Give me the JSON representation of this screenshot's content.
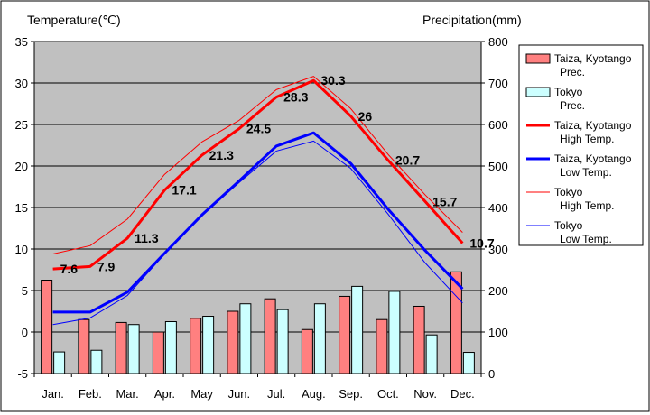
{
  "chart_data": {
    "type": "bar+line",
    "left_axis_title": "Temperature(℃)",
    "right_axis_title": "Precipitation(mm)",
    "categories": [
      "Jan.",
      "Feb.",
      "Mar.",
      "Apr.",
      "May",
      "Jun.",
      "Jul.",
      "Aug.",
      "Sep.",
      "Oct.",
      "Nov.",
      "Dec."
    ],
    "temp_ylim": [
      -5,
      35
    ],
    "temp_ticks": [
      "35",
      "30",
      "25",
      "20",
      "15",
      "10",
      "5",
      "0",
      "-5"
    ],
    "precip_ylim": [
      0,
      800
    ],
    "precip_ticks": [
      "800",
      "700",
      "600",
      "500",
      "400",
      "300",
      "200",
      "100",
      "0"
    ],
    "plot_background": "#c0c0c0",
    "bar_series": [
      {
        "name": "Taiza, Kyotango Prec.",
        "legend_lines": [
          "Taiza, Kyotango",
          "Prec."
        ],
        "color": "#ff8080",
        "values": [
          225,
          130,
          123,
          100,
          133,
          150,
          180,
          106,
          186,
          130,
          162,
          245
        ]
      },
      {
        "name": "Tokyo Prec.",
        "legend_lines": [
          "Tokyo",
          "Prec."
        ],
        "color": "#ccffff",
        "values": [
          52,
          56,
          118,
          125,
          138,
          168,
          154,
          168,
          210,
          198,
          93,
          51
        ]
      }
    ],
    "line_series": [
      {
        "name": "Taiza, Kyotango High Temp.",
        "legend_lines": [
          "Taiza, Kyotango",
          "High Temp."
        ],
        "color": "#ff0000",
        "width": 3,
        "values": [
          7.6,
          7.9,
          11.3,
          17.1,
          21.3,
          24.5,
          28.3,
          30.3,
          26,
          20.7,
          15.7,
          10.7
        ],
        "labels": [
          "7.6",
          "7.9",
          "11.3",
          "17.1",
          "21.3",
          "24.5",
          "28.3",
          "30.3",
          "26",
          "20.7",
          "15.7",
          "10.7"
        ]
      },
      {
        "name": "Taiza, Kyotango Low Temp.",
        "legend_lines": [
          "Taiza, Kyotango",
          "Low Temp."
        ],
        "color": "#0000ff",
        "width": 3,
        "values": [
          2.4,
          2.4,
          4.8,
          9.5,
          14.1,
          18.2,
          22.4,
          24.0,
          20.3,
          14.8,
          9.8,
          5.2
        ]
      },
      {
        "name": "Tokyo High Temp.",
        "legend_lines": [
          "Tokyo",
          "High Temp."
        ],
        "color": "#ff0000",
        "width": 1,
        "values": [
          9.4,
          10.4,
          13.6,
          19.0,
          22.9,
          25.5,
          29.2,
          30.8,
          26.9,
          21.4,
          16.5,
          12.0
        ]
      },
      {
        "name": "Tokyo Low Temp.",
        "legend_lines": [
          "Tokyo",
          "Low Temp."
        ],
        "color": "#0000ff",
        "width": 1,
        "values": [
          0.9,
          1.7,
          4.4,
          9.4,
          14.0,
          18.0,
          21.8,
          23.0,
          19.7,
          14.2,
          8.3,
          3.5
        ]
      }
    ]
  }
}
